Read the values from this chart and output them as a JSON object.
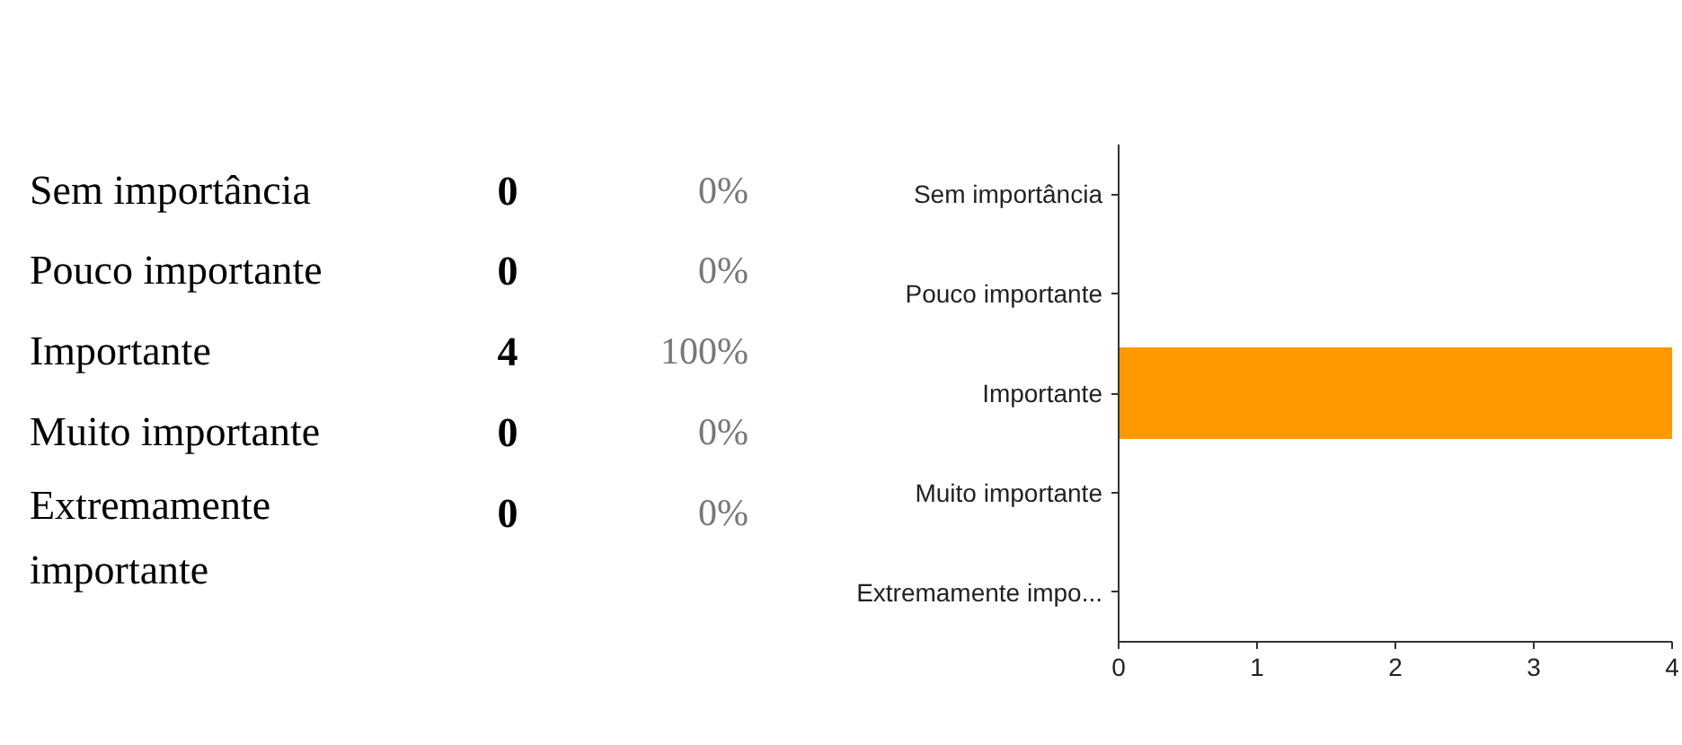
{
  "chart_data": [
    {
      "type": "other",
      "categories": [
        "Sem importância",
        "Pouco importante",
        "Importante",
        "Muito importante",
        "Extremamente importante"
      ],
      "data_labels": true,
      "series": [
        {
          "values": [
            0,
            0,
            4,
            0,
            0
          ]
        },
        {
          "values": [
            0,
            0,
            100,
            0,
            0
          ],
          "value_labels": [
            "0%",
            "0%",
            "100%",
            "0%",
            "0%"
          ]
        }
      ]
    },
    {
      "type": "bar",
      "orientation": "horizontal",
      "categories": [
        "Sem importância",
        "Pouco importante",
        "Importante",
        "Muito importante",
        "Extremamente impo..."
      ],
      "values": [
        0,
        0,
        4,
        0,
        0
      ],
      "color": "#ff9900",
      "xlim": [
        0,
        4
      ],
      "xticks": [
        0,
        1,
        2,
        3,
        4
      ],
      "grid": false
    }
  ]
}
